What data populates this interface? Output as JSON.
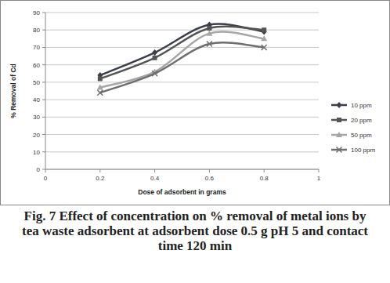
{
  "chart_data": {
    "type": "line",
    "title": "Fig. 7 Effect of concentration on % removal of metal ions by tea waste adsorbent at adsorbent dose 0.5 g pH 5 and contact time 120 min",
    "x_label": "Dose of adsorbent in grams",
    "y_label": "% Removal of Cd",
    "x": [
      0.2,
      0.4,
      0.6,
      0.8
    ],
    "series": [
      {
        "name": "10 ppm",
        "color": "#3a3f4a",
        "marker": "diamond",
        "values": [
          54,
          67,
          83,
          79
        ]
      },
      {
        "name": "20 ppm",
        "color": "#545454",
        "marker": "square",
        "values": [
          52,
          64,
          81,
          80
        ]
      },
      {
        "name": "50 ppm",
        "color": "#a6a6a6",
        "marker": "triangle",
        "values": [
          47,
          56,
          78,
          75
        ]
      },
      {
        "name": "100 ppm",
        "color": "#6e6e6e",
        "marker": "x",
        "values": [
          44,
          55,
          72,
          70
        ]
      }
    ],
    "xlim": [
      0,
      1
    ],
    "xticks": [
      0,
      0.2,
      0.4,
      0.6,
      0.8,
      1
    ],
    "ylim": [
      0,
      90
    ],
    "yticks": [
      0,
      10,
      20,
      30,
      40,
      50,
      60,
      70,
      80,
      90
    ],
    "grid": true,
    "legend": "right",
    "line_style": "smooth"
  }
}
